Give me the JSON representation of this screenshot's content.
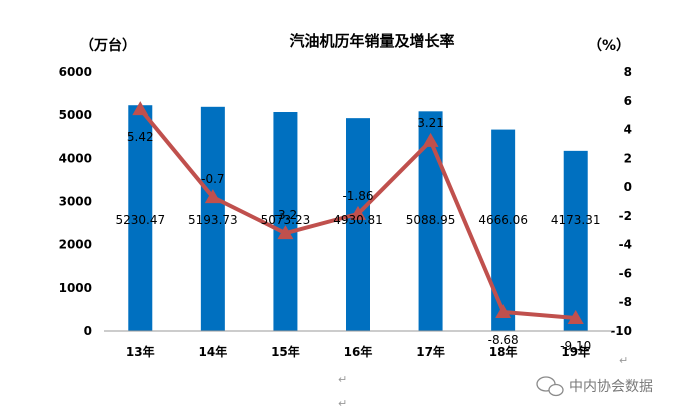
{
  "chart_data": {
    "type": "bar",
    "title": "汽油机历年销量及增长率",
    "categories": [
      "13年",
      "14年",
      "15年",
      "16年",
      "17年",
      "18年",
      "19年"
    ],
    "series": [
      {
        "type": "bar",
        "axis": "left",
        "values": [
          5230.47,
          5193.73,
          5073.23,
          4930.81,
          5088.95,
          4666.06,
          4173.31
        ],
        "labels": [
          "5230.47",
          "5193.73",
          "5073.23",
          "4930.81",
          "5088.95",
          "4666.06",
          "4173.31"
        ],
        "color": "#0070C0"
      },
      {
        "type": "line",
        "axis": "right",
        "values": [
          5.42,
          -0.7,
          -3.2,
          -1.86,
          3.21,
          -8.68,
          -9.1
        ],
        "labels": [
          "5.42",
          "-0.7",
          "-3.2",
          "-1.86",
          "3.21",
          "-8.68",
          "-9.10"
        ],
        "color": "#C0504D"
      }
    ],
    "y_left": {
      "label": "（万台）",
      "ylim": [
        0,
        6000
      ],
      "ticks": [
        "0",
        "1000",
        "2000",
        "3000",
        "4000",
        "5000",
        "6000"
      ]
    },
    "y_right": {
      "label": "（%）",
      "ylim": [
        -10,
        8
      ],
      "ticks": [
        "-10",
        "-8",
        "-6",
        "-4",
        "-2",
        "0",
        "2",
        "4",
        "6",
        "8"
      ]
    },
    "grid": false,
    "legend": "none"
  },
  "doc": {
    "paragraph_mark": "↵",
    "watermark": "中内协会数据"
  }
}
